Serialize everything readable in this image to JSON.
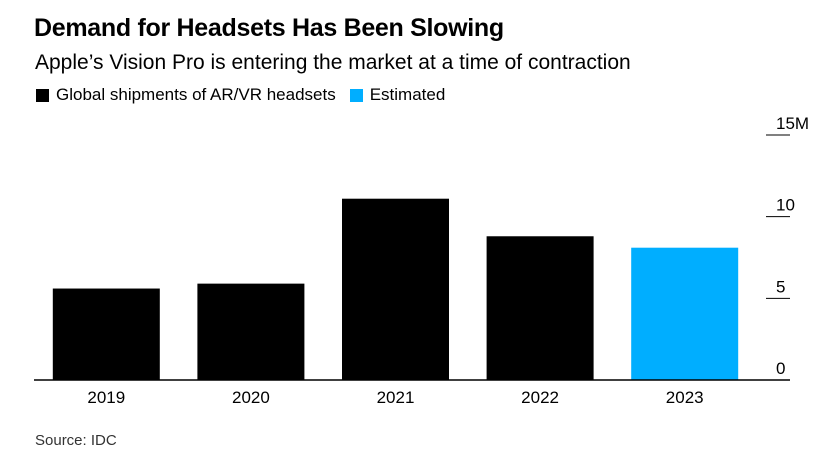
{
  "chart_data": {
    "type": "bar",
    "title": "Demand for Headsets Has Been Slowing",
    "subtitle": "Apple’s Vision Pro is entering the market at a time of contraction",
    "categories": [
      "2019",
      "2020",
      "2021",
      "2022",
      "2023"
    ],
    "values": [
      5.6,
      5.9,
      11.1,
      8.8,
      8.1
    ],
    "estimated": [
      false,
      false,
      false,
      false,
      true
    ],
    "legend": [
      {
        "label": "Global shipments of AR/VR headsets",
        "color": "#000000"
      },
      {
        "label": "Estimated",
        "color": "#00aeff"
      }
    ],
    "ylim": [
      0,
      15
    ],
    "yticks": [
      {
        "value": 0,
        "label": "0"
      },
      {
        "value": 5,
        "label": "5"
      },
      {
        "value": 10,
        "label": "10"
      },
      {
        "value": 15,
        "label": "15M"
      }
    ],
    "xlabel": "",
    "ylabel": "",
    "axis_side": "right",
    "source": "Source: IDC"
  }
}
